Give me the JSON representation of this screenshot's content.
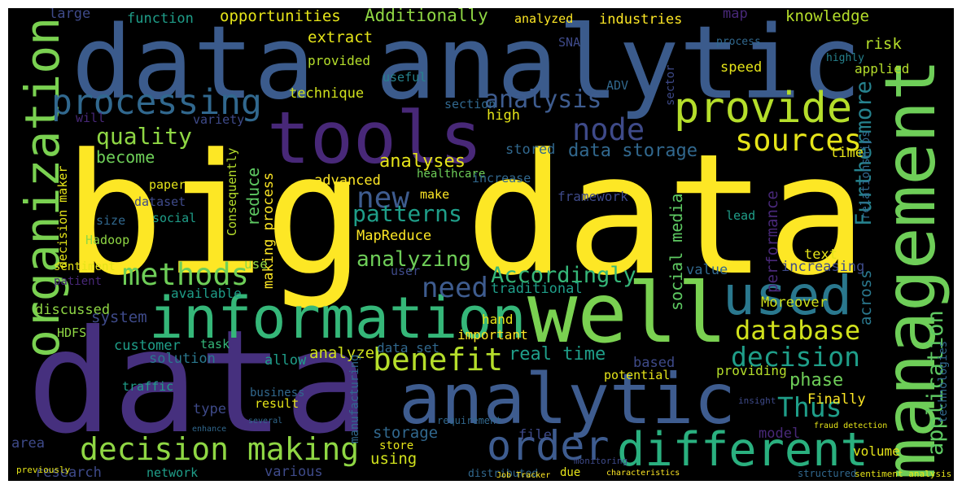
{
  "words": [
    "big data",
    "data analytic",
    "data",
    "analytic",
    "well",
    "management",
    "tools",
    "provide",
    "information",
    "organization",
    "processing",
    "methods",
    "decision making",
    "different",
    "order",
    "used",
    "database",
    "decision",
    "sources",
    "Furthermore",
    "application",
    "node",
    "benefit",
    "need",
    "Accordingly",
    "analysis",
    "new",
    "patterns",
    "analyzing",
    "quality",
    "Thus",
    "phase",
    "data storage",
    "real time",
    "social media",
    "performance",
    "Additionally",
    "opportunities",
    "function",
    "large",
    "extract",
    "analyzed",
    "industries",
    "map",
    "knowledge",
    "risk",
    "applied",
    "provided",
    "useful",
    "technique",
    "section",
    "high",
    "variety",
    "will",
    "become",
    "stored",
    "analyses",
    "advanced",
    "decision maker",
    "paper",
    "dataset",
    "social",
    "size",
    "Hadoop",
    "reduce",
    "making process",
    "Consequently",
    "MapReduce",
    "framework",
    "make",
    "healthcare",
    "increase",
    "lead",
    "text",
    "increasing",
    "value",
    "Moreover",
    "across",
    "relationships",
    "time",
    "speed",
    "highly",
    "process",
    "SNA",
    "ADV",
    "sector",
    "traditional",
    "user",
    "use",
    "sentiment",
    "patient",
    "available",
    "discussed",
    "system",
    "HDFS",
    "customer",
    "task",
    "solution",
    "allow",
    "important",
    "hand",
    "analyze",
    "data set",
    "based",
    "providing",
    "potential",
    "Finally",
    "traffic",
    "business",
    "result",
    "type",
    "area",
    "research",
    "network",
    "various",
    "using",
    "storage",
    "store",
    "file",
    "distributed",
    "due",
    "model",
    "volume",
    "structured",
    "sentiment analysis",
    "manufacturing",
    "characteristics",
    "Job Tracker",
    "monitoring",
    "requirement",
    "previously",
    "several",
    "enhance",
    "insight",
    "fraud detection",
    "technologies"
  ]
}
